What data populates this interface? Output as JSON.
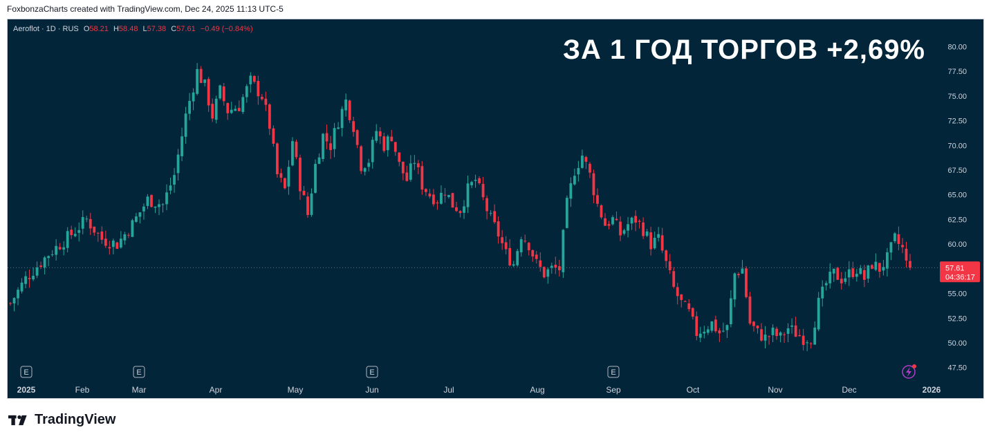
{
  "header": {
    "credit": "FoxbonzaCharts created with TradingView.com, Dec 24, 2025 11:13 UTC-5"
  },
  "legend": {
    "symbol": "Aeroflot · 1D · RUS",
    "o_label": "O",
    "o_value": "58.21",
    "h_label": "H",
    "h_value": "58.48",
    "l_label": "L",
    "l_value": "57.38",
    "c_label": "C",
    "c_value": "57.61",
    "change": "−0.49 (−0.84%)"
  },
  "overlay_title": "ЗА 1 ГОД ТОРГОВ +2,69%",
  "price_tag": {
    "price": "57.61",
    "countdown": "04:36:17"
  },
  "event_marker_label": "E",
  "footer": {
    "brand": "TradingView"
  },
  "colors": {
    "background": "#02253a",
    "up": "#26a69a",
    "down": "#f23645",
    "axis_text": "#d1d4dc"
  },
  "icons": {
    "event": "earnings-e-icon",
    "flash": "lightning-icon",
    "logo": "tradingview-logo-icon"
  },
  "chart_data": {
    "type": "candlestick",
    "symbol": "Aeroflot",
    "interval": "1D",
    "exchange": "RUS",
    "ylim": [
      46.5,
      81.5
    ],
    "y_ticks": [
      "80.00",
      "77.50",
      "75.00",
      "72.50",
      "70.00",
      "67.50",
      "65.00",
      "62.50",
      "60.00",
      "57.50",
      "55.00",
      "52.50",
      "50.00",
      "47.50"
    ],
    "x_labels": [
      "2025",
      "Feb",
      "Mar",
      "Apr",
      "May",
      "Jun",
      "Jul",
      "Aug",
      "Sep",
      "Oct",
      "Nov",
      "Dec",
      "2026"
    ],
    "last_price": 57.61,
    "earnings_marker_months": [
      "2025",
      "Mar",
      "Jun",
      "Sep"
    ],
    "close_path": [
      [
        0,
        54.0
      ],
      [
        4,
        56.5
      ],
      [
        10,
        59.0
      ],
      [
        16,
        61.0
      ],
      [
        20,
        62.5
      ],
      [
        24,
        60.5
      ],
      [
        28,
        60.0
      ],
      [
        32,
        62.0
      ],
      [
        36,
        64.5
      ],
      [
        40,
        64.0
      ],
      [
        43,
        67.0
      ],
      [
        46,
        73.0
      ],
      [
        49,
        77.5
      ],
      [
        51,
        76.0
      ],
      [
        53,
        73.0
      ],
      [
        55,
        75.5
      ],
      [
        57,
        73.5
      ],
      [
        60,
        74.0
      ],
      [
        63,
        76.5
      ],
      [
        66,
        75.0
      ],
      [
        68,
        72.0
      ],
      [
        70,
        67.0
      ],
      [
        72,
        65.5
      ],
      [
        74,
        70.5
      ],
      [
        76,
        66.0
      ],
      [
        78,
        63.0
      ],
      [
        80,
        68.0
      ],
      [
        82,
        71.0
      ],
      [
        84,
        70.0
      ],
      [
        86,
        72.5
      ],
      [
        88,
        74.5
      ],
      [
        90,
        72.0
      ],
      [
        92,
        68.0
      ],
      [
        94,
        68.5
      ],
      [
        96,
        71.5
      ],
      [
        98,
        70.0
      ],
      [
        100,
        71.0
      ],
      [
        102,
        68.0
      ],
      [
        104,
        66.5
      ],
      [
        106,
        68.5
      ],
      [
        108,
        66.0
      ],
      [
        110,
        65.0
      ],
      [
        112,
        64.5
      ],
      [
        114,
        65.5
      ],
      [
        116,
        64.0
      ],
      [
        118,
        63.5
      ],
      [
        120,
        65.5
      ],
      [
        122,
        66.5
      ],
      [
        124,
        64.5
      ],
      [
        126,
        62.5
      ],
      [
        128,
        61.0
      ],
      [
        130,
        59.0
      ],
      [
        132,
        58.0
      ],
      [
        134,
        61.0
      ],
      [
        136,
        60.0
      ],
      [
        138,
        58.0
      ],
      [
        140,
        57.0
      ],
      [
        142,
        57.5
      ],
      [
        144,
        57.5
      ],
      [
        146,
        64.0
      ],
      [
        148,
        67.5
      ],
      [
        150,
        69.0
      ],
      [
        152,
        67.0
      ],
      [
        154,
        64.0
      ],
      [
        156,
        62.0
      ],
      [
        158,
        62.5
      ],
      [
        160,
        61.0
      ],
      [
        162,
        62.0
      ],
      [
        164,
        62.5
      ],
      [
        166,
        61.5
      ],
      [
        168,
        60.0
      ],
      [
        170,
        60.5
      ],
      [
        172,
        58.0
      ],
      [
        174,
        55.5
      ],
      [
        176,
        54.0
      ],
      [
        178,
        53.0
      ],
      [
        180,
        51.0
      ],
      [
        182,
        51.5
      ],
      [
        184,
        52.0
      ],
      [
        186,
        51.0
      ],
      [
        188,
        51.5
      ],
      [
        190,
        57.0
      ],
      [
        192,
        57.5
      ],
      [
        194,
        52.0
      ],
      [
        196,
        51.0
      ],
      [
        198,
        50.5
      ],
      [
        200,
        51.0
      ],
      [
        202,
        50.5
      ],
      [
        204,
        51.5
      ],
      [
        206,
        51.0
      ],
      [
        208,
        50.5
      ],
      [
        210,
        50.5
      ],
      [
        212,
        54.0
      ],
      [
        214,
        56.0
      ],
      [
        216,
        57.0
      ],
      [
        218,
        56.5
      ],
      [
        220,
        57.0
      ],
      [
        222,
        57.5
      ],
      [
        224,
        56.5
      ],
      [
        226,
        58.0
      ],
      [
        228,
        57.5
      ],
      [
        230,
        58.5
      ],
      [
        232,
        60.5
      ],
      [
        234,
        59.5
      ],
      [
        235,
        58.0
      ],
      [
        236,
        57.61
      ]
    ],
    "n_bars": 237,
    "volatility": 0.9
  }
}
